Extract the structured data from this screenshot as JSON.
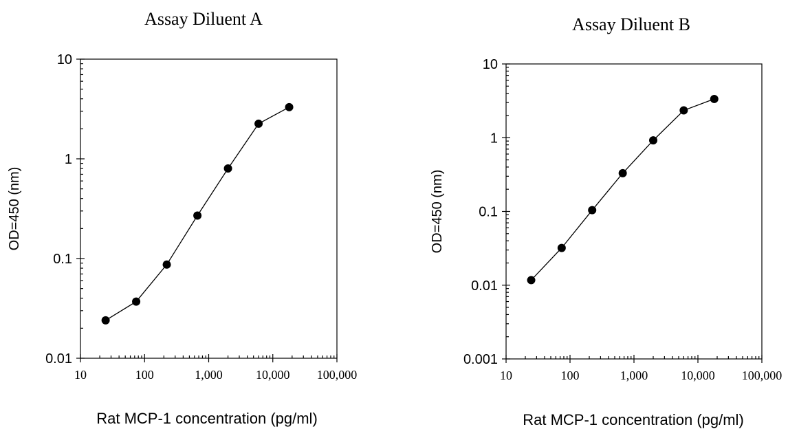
{
  "chart_data": [
    {
      "type": "line",
      "title": "Assay Diluent A",
      "xlabel": "Rat MCP-1 concentration (pg/ml)",
      "ylabel": "OD=450 (nm)",
      "xscale": "log",
      "yscale": "log",
      "xlim": [
        10,
        100000
      ],
      "ylim": [
        0.01,
        10
      ],
      "xticks": [
        10,
        100,
        1000,
        10000,
        100000
      ],
      "xtick_labels": [
        "10",
        "100",
        "1,000",
        "10,000",
        "100,000"
      ],
      "yticks": [
        0.01,
        0.1,
        1,
        10
      ],
      "ytick_labels": [
        "0.01",
        "0.1",
        "1",
        "10"
      ],
      "grid": false,
      "series": [
        {
          "x": [
            24.7,
            74,
            222,
            667,
            2000,
            6000,
            18000
          ],
          "y": [
            0.024,
            0.037,
            0.087,
            0.27,
            0.8,
            2.25,
            3.3
          ]
        }
      ]
    },
    {
      "type": "line",
      "title": "Assay Diluent B",
      "xlabel": "Rat MCP-1 concentration (pg/ml)",
      "ylabel": "OD=450 (nm)",
      "xscale": "log",
      "yscale": "log",
      "xlim": [
        10,
        100000
      ],
      "ylim": [
        0.001,
        10
      ],
      "xticks": [
        10,
        100,
        1000,
        10000,
        100000
      ],
      "xtick_labels": [
        "10",
        "100",
        "1,000",
        "10,000",
        "100,000"
      ],
      "yticks": [
        0.001,
        0.01,
        0.1,
        1,
        10
      ],
      "ytick_labels": [
        "0.001",
        "0.01",
        "0.1",
        "1",
        "10"
      ],
      "grid": false,
      "series": [
        {
          "x": [
            24.7,
            74,
            222,
            667,
            2000,
            6000,
            18000
          ],
          "y": [
            0.0117,
            0.032,
            0.104,
            0.33,
            0.92,
            2.35,
            3.35
          ]
        }
      ]
    }
  ]
}
